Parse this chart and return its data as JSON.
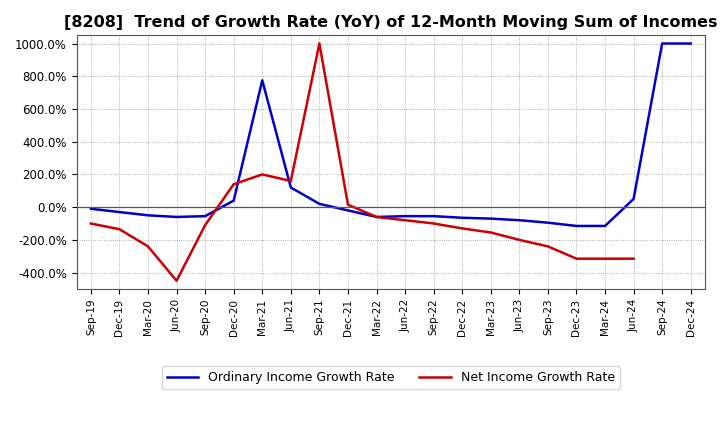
{
  "title": "[8208]  Trend of Growth Rate (YoY) of 12-Month Moving Sum of Incomes",
  "title_fontsize": 11.5,
  "ylim": [
    -500,
    1050
  ],
  "yticks": [
    -400,
    -200,
    0,
    200,
    400,
    600,
    800,
    1000
  ],
  "ytick_labels": [
    "-400.0%",
    "-200.0%",
    "0.0%",
    "200.0%",
    "400.0%",
    "600.0%",
    "800.0%",
    "1000.0%"
  ],
  "background_color": "#ffffff",
  "plot_background": "#ffffff",
  "grid_color": "#999999",
  "line_color_ordinary": "#0000cc",
  "line_color_net": "#cc0000",
  "legend_ordinary": "Ordinary Income Growth Rate",
  "legend_net": "Net Income Growth Rate",
  "xtick_labels": [
    "Sep-19",
    "Dec-19",
    "Mar-20",
    "Jun-20",
    "Sep-20",
    "Dec-20",
    "Mar-21",
    "Jun-21",
    "Sep-21",
    "Dec-21",
    "Mar-22",
    "Jun-22",
    "Sep-22",
    "Dec-22",
    "Mar-23",
    "Jun-23",
    "Sep-23",
    "Dec-23",
    "Mar-24",
    "Jun-24",
    "Sep-24",
    "Dec-24"
  ],
  "ordinary_income": [
    -10,
    -30,
    -50,
    -60,
    -55,
    40,
    775,
    120,
    20,
    -20,
    -60,
    -55,
    -55,
    -65,
    -70,
    -80,
    -95,
    -115,
    -115,
    50,
    1000,
    1000
  ],
  "net_income": [
    -100,
    -135,
    -240,
    -450,
    -110,
    140,
    200,
    160,
    1000,
    15,
    -60,
    -80,
    -100,
    -130,
    -155,
    -200,
    -240,
    -315,
    -315,
    -315,
    null,
    null
  ]
}
